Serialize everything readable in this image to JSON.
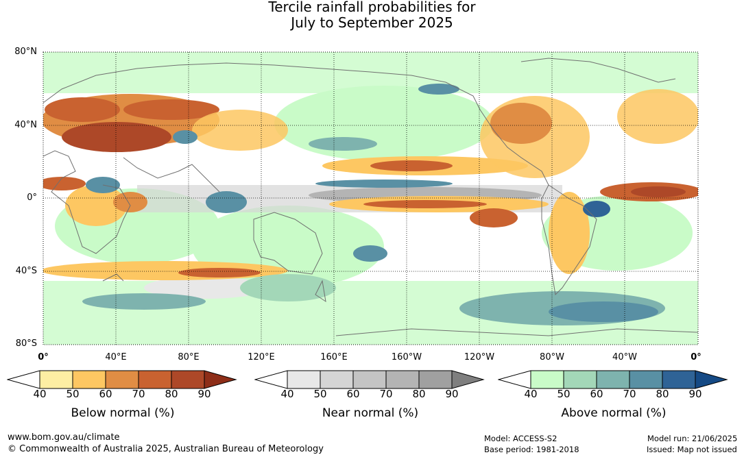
{
  "title_line1": "Tercile rainfall probabilities for",
  "title_line2": "July to September 2025",
  "latitude_labels": [
    "80°N",
    "40°N",
    "0°",
    "40°S",
    "80°S"
  ],
  "longitude_labels": [
    "0°",
    "40°E",
    "80°E",
    "120°E",
    "160°E",
    "160°W",
    "120°W",
    "80°W",
    "40°W",
    "0°"
  ],
  "legends": [
    {
      "title": "Below normal (%)",
      "ticks": [
        "40",
        "50",
        "60",
        "70",
        "80",
        "90"
      ],
      "colors": [
        "#ffffff",
        "#fdeea3",
        "#fdc762",
        "#e08d44",
        "#c96230",
        "#ad4828",
        "#8e2e18"
      ]
    },
    {
      "title": "Near normal (%)",
      "ticks": [
        "40",
        "50",
        "60",
        "70",
        "80",
        "90"
      ],
      "colors": [
        "#ffffff",
        "#e8e8e8",
        "#d5d5d5",
        "#c4c4c4",
        "#b4b4b4",
        "#a0a0a0",
        "#7f7f7f"
      ]
    },
    {
      "title": "Above normal (%)",
      "ticks": [
        "40",
        "50",
        "60",
        "70",
        "80",
        "90"
      ],
      "colors": [
        "#ffffff",
        "#c9fbc8",
        "#a3d7b8",
        "#7eb3ae",
        "#5990a4",
        "#2f6396",
        "#154a85"
      ]
    }
  ],
  "footer": {
    "url": "www.bom.gov.au/climate",
    "copyright": "© Commonwealth of Australia 2025, Australian Bureau of Meteorology",
    "model": "Model: ACCESS-S2",
    "base_period": "Base period: 1981-2018",
    "model_run": "Model run: 21/06/2025",
    "issued": "Issued: Map not issued"
  }
}
